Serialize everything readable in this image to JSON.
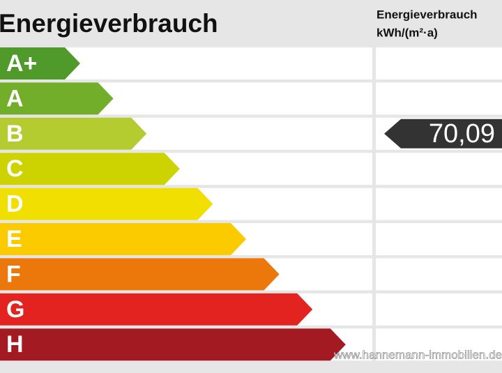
{
  "header": {
    "title": "Energieverbrauch",
    "column_title": "Energieverbrauch",
    "column_unit": "kWh/(m²·a)"
  },
  "classes": [
    {
      "label": "A+",
      "color": "#4f9a2a"
    },
    {
      "label": "A",
      "color": "#73ae2b"
    },
    {
      "label": "B",
      "color": "#b5cc30"
    },
    {
      "label": "C",
      "color": "#ccd300"
    },
    {
      "label": "D",
      "color": "#f0df00"
    },
    {
      "label": "E",
      "color": "#fbcb00"
    },
    {
      "label": "F",
      "color": "#ec780c"
    },
    {
      "label": "G",
      "color": "#e2231f"
    },
    {
      "label": "H",
      "color": "#a31a22"
    }
  ],
  "value": {
    "text": "70,09",
    "class": "B"
  },
  "watermark": "www.hannemann-immobilien.de"
}
